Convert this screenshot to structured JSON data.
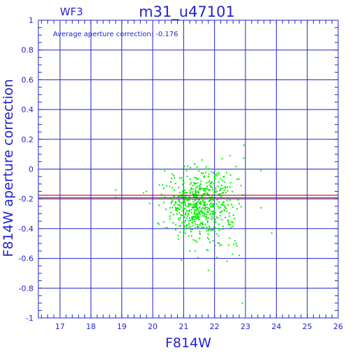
{
  "chart_data": {
    "type": "scatter",
    "title": "m31_u47101",
    "subtitle": "WF3",
    "annotation": "Average aperture correction: -0.176",
    "xlabel": "F814W",
    "ylabel": "F814W aperture correction",
    "xlim": [
      16.3,
      26
    ],
    "ylim": [
      -1,
      1
    ],
    "x_ticks": [
      "17",
      "18",
      "19",
      "20",
      "21",
      "22",
      "23",
      "24",
      "25",
      "26"
    ],
    "y_ticks": [
      "1",
      "0.8",
      "0.6",
      "0.4",
      "0.2",
      "0",
      "-0.2",
      "-0.4",
      "-0.6",
      "-0.8",
      "-1"
    ],
    "grid": true,
    "reference_lines": [
      {
        "y": -0.176,
        "color": "#cc0000"
      },
      {
        "y": -0.193,
        "color": "#cc0000"
      }
    ],
    "point_color": "#00ee00",
    "cluster": {
      "count": 640,
      "center_x": 21.55,
      "center_y": -0.24,
      "spread_x": 0.55,
      "spread_y": 0.11,
      "x_range": [
        20.1,
        23.1
      ],
      "y_range": [
        -0.68,
        0.1
      ]
    },
    "points": [
      {
        "x": 18.8,
        "y": -0.14
      },
      {
        "x": 18.8,
        "y": -0.19
      },
      {
        "x": 19.7,
        "y": -0.16
      },
      {
        "x": 19.8,
        "y": -0.15
      },
      {
        "x": 19.9,
        "y": -0.23
      },
      {
        "x": 20.2,
        "y": -0.37
      },
      {
        "x": 20.4,
        "y": -0.19
      },
      {
        "x": 22.5,
        "y": 0.09
      },
      {
        "x": 22.95,
        "y": 0.16
      },
      {
        "x": 23.0,
        "y": 0.04
      },
      {
        "x": 23.0,
        "y": 0.0
      },
      {
        "x": 23.5,
        "y": -0.01
      },
      {
        "x": 23.5,
        "y": -0.26
      },
      {
        "x": 23.85,
        "y": -0.43
      },
      {
        "x": 21.8,
        "y": -0.68
      },
      {
        "x": 22.0,
        "y": -0.72
      },
      {
        "x": 22.9,
        "y": -0.9
      },
      {
        "x": 22.8,
        "y": -0.58
      },
      {
        "x": 22.7,
        "y": -0.5
      },
      {
        "x": 22.4,
        "y": -0.62
      },
      {
        "x": 21.2,
        "y": -0.55
      },
      {
        "x": 21.0,
        "y": -0.52
      }
    ]
  },
  "colors": {
    "axis": "#2323cc",
    "grid": "#2323cc",
    "text": "#2323cc"
  }
}
